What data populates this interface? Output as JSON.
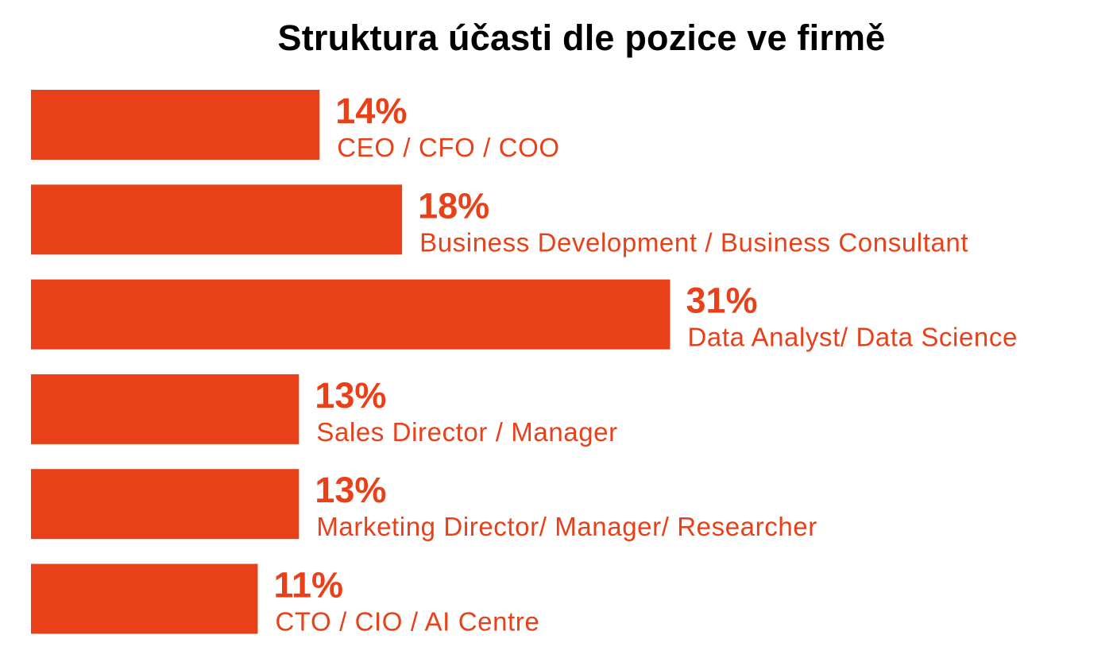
{
  "chart_data": {
    "type": "bar",
    "orientation": "horizontal",
    "title": "Struktura účasti dle pozice ve firmě",
    "bar_color": "#E8411A",
    "text_color": "#E8411A",
    "title_color": "#000000",
    "categories": [
      "CEO / CFO / COO",
      "Business Development / Business Consultant",
      "Data Analyst/ Data Science",
      "Sales Director / Manager",
      "Marketing Director/ Manager/ Researcher",
      "CTO / CIO / AI Centre"
    ],
    "values": [
      14,
      18,
      31,
      13,
      13,
      11
    ],
    "value_labels": [
      "14%",
      "18%",
      "31%",
      "13%",
      "13%",
      "11%"
    ],
    "unit": "%",
    "grid": false,
    "legend": "none"
  }
}
